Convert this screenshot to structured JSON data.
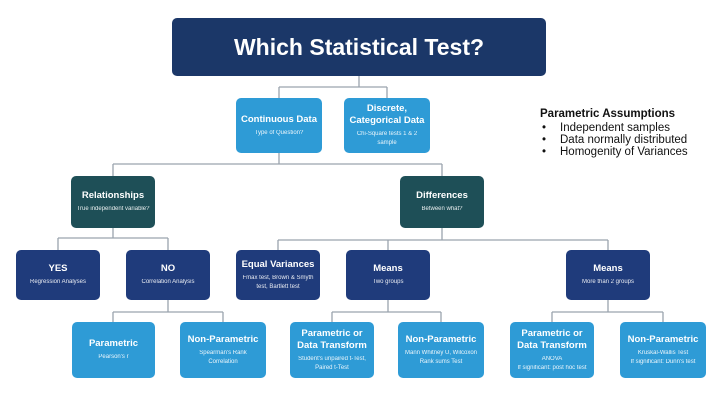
{
  "title": "Which Statistical Test?",
  "nodes": {
    "continuous": {
      "title": "Continuous Data",
      "sub": "Type of Question?"
    },
    "discrete": {
      "title": "Discrete, Categorical Data",
      "sub": "Chi-Square tests 1 & 2 sample"
    },
    "relationships": {
      "title": "Relationships",
      "sub": "True independent variable?"
    },
    "differences": {
      "title": "Differences",
      "sub": "Between what?"
    },
    "yes": {
      "title": "YES",
      "sub": "Regression Analyses"
    },
    "no": {
      "title": "NO",
      "sub": "Correlation Analysis"
    },
    "equal_var": {
      "title": "Equal Variances",
      "sub": "Fmax test, Brown & Smyth test, Bartlett test"
    },
    "means_two": {
      "title": "Means",
      "sub": "Two groups"
    },
    "means_more": {
      "title": "Means",
      "sub": "More than 2 groups"
    },
    "corr_param": {
      "title": "Parametric",
      "sub": "Pearson's r"
    },
    "corr_nonparam": {
      "title": "Non-Parametric",
      "sub": "Spearman's Rank Correlation"
    },
    "two_param": {
      "title": "Parametric or Data Transform",
      "sub": "Student's unpaired t-Test, Paired t-Test"
    },
    "two_nonparam": {
      "title": "Non-Parametric",
      "sub": "Mann Whitney U, Wilcoxon Rank sums Test"
    },
    "more_param": {
      "title": "Parametric or Data Transform",
      "sub": "ANOVA",
      "sub2": "If significant: post hoc test"
    },
    "more_nonparam": {
      "title": "Non-Parametric",
      "sub": "Kruskal-Wallis Test",
      "sub2": "If significant: Dunn's test"
    }
  },
  "assumptions": {
    "heading": "Parametric Assumptions",
    "items": [
      "Independent samples",
      "Data normally distributed",
      "Homogenity of Variances"
    ]
  },
  "colors": {
    "title": "#1b3768",
    "light_blue": "#2e9bd6",
    "teal": "#1e4f57",
    "navy": "#1f3b7b"
  }
}
